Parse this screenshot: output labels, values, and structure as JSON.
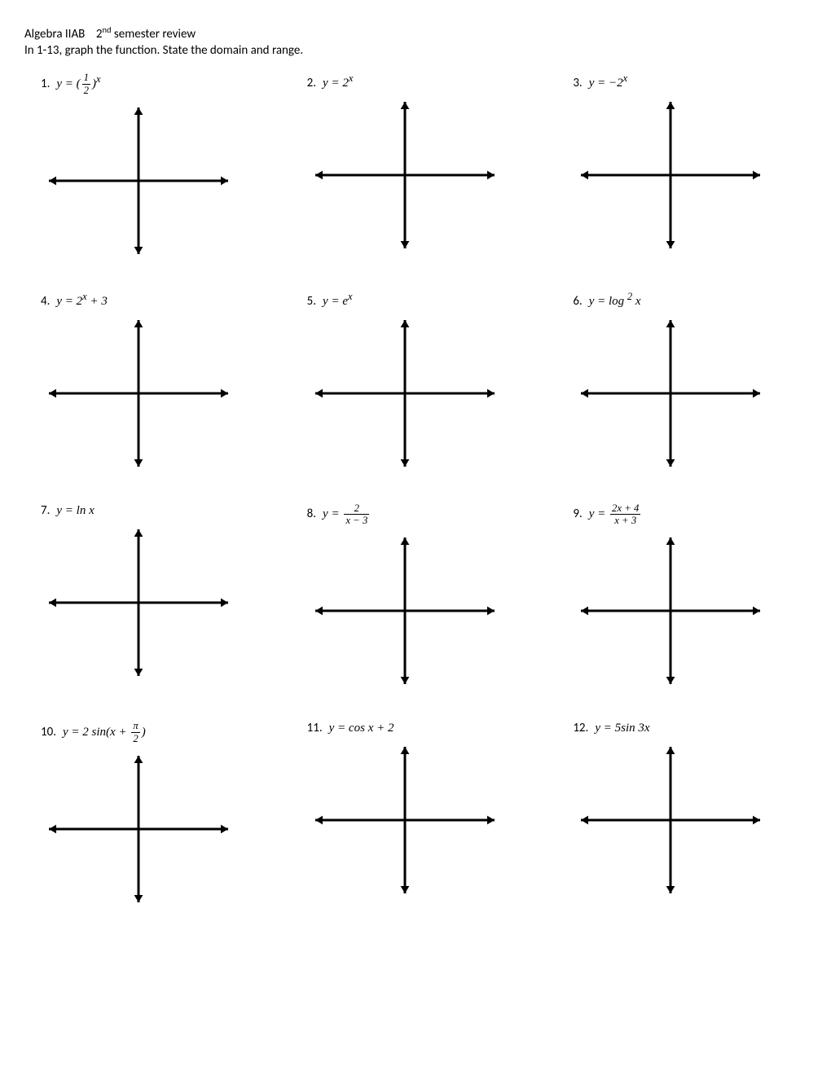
{
  "header": {
    "course": "Algebra IIAB",
    "semester_prefix": "2",
    "semester_suffix": "nd",
    "semester_rest": " semester review"
  },
  "instructions": "In 1-13, graph the function.  State the domain and range.",
  "axis_style": {
    "stroke": "#000000",
    "stroke_width": 3,
    "arrow_size": 9
  },
  "problems": [
    {
      "num": "1.",
      "eq_html": "<span class='equation'>y = (<span class='frac'><span class='num'>1</span><span class='den'>2</span></span>)<sup>x</sup></span>"
    },
    {
      "num": "2.",
      "eq_html": "<span class='equation'>y = 2<sup>x</sup></span>"
    },
    {
      "num": "3.",
      "eq_html": "<span class='equation'>y = −2<sup>x</sup></span>"
    },
    {
      "num": "4.",
      "eq_html": "<span class='equation'>y = 2<sup>x</sup> + 3</span>"
    },
    {
      "num": "5.",
      "eq_html": "<span class='equation'>y = e<sup>x</sup></span>"
    },
    {
      "num": "6.",
      "eq_html": "<span class='equation'>y = log <sup>2</sup> x</span>"
    },
    {
      "num": "7.",
      "eq_html": "<span class='equation'>y = ln <i>x</i></span>"
    },
    {
      "num": "8.",
      "eq_html": "<span class='equation'>y = <span class='frac'><span class='num'>2</span><span class='den'>x − 3</span></span></span>"
    },
    {
      "num": "9.",
      "eq_html": "<span class='equation'>y = <span class='frac'><span class='num'>2x + 4</span><span class='den'>x + 3</span></span></span>"
    },
    {
      "num": "10.",
      "eq_html": "<span class='equation'>y = 2 sin(x + <span class='frac'><span class='num'>π</span><span class='den'>2</span></span>)</span>"
    },
    {
      "num": "11.",
      "eq_html": "<span class='equation'>y = cos <i>x</i> + 2</span>"
    },
    {
      "num": "12.",
      "eq_html": "<span class='equation'>y = 5sin 3<i>x</i></span>"
    }
  ]
}
